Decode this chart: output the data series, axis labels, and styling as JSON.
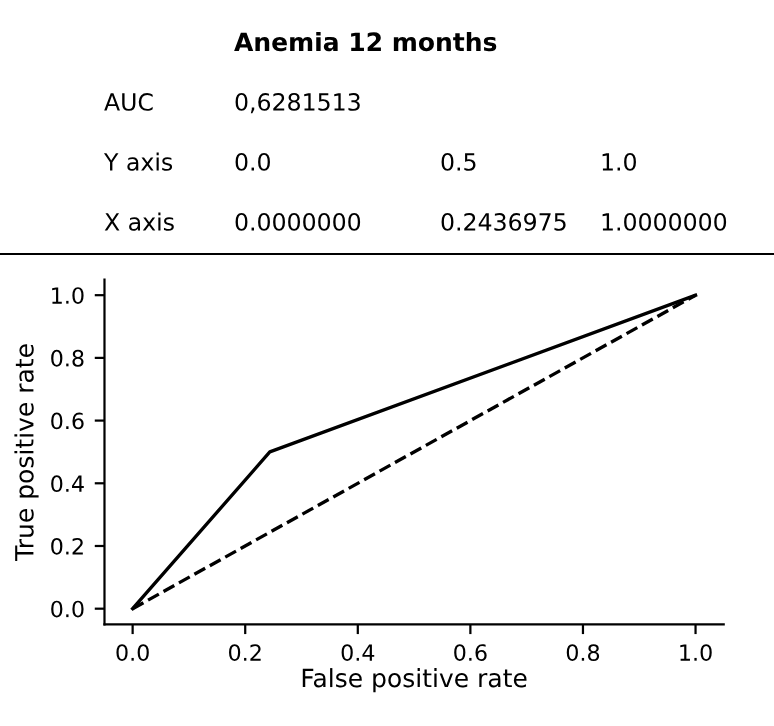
{
  "chart_data": {
    "type": "line",
    "title": "Anemia 12 months",
    "xlabel": "False positive rate",
    "ylabel": "True positive rate",
    "annotations": [
      "AUC",
      "0,6281513",
      "Y axis",
      "0.0",
      "0.5",
      "1.0",
      "X axis",
      "0.0000000",
      "0.2436975",
      "1.0000000"
    ],
    "series": [
      {
        "color": "#000000",
        "x": [
          0,
          0.2436975,
          1
        ],
        "values": [
          0,
          0.5,
          1
        ],
        "line_style": "solid"
      },
      {
        "color": "#000000",
        "x": [
          0,
          1
        ],
        "values": [
          0,
          1
        ],
        "line_style": "dashed"
      }
    ],
    "xlim": [
      -0.05,
      1.05
    ],
    "ylim": [
      -0.05,
      1.05
    ],
    "xticks": [
      {
        "value": 0,
        "label": "0.0"
      },
      {
        "value": 0.2,
        "label": "0.2"
      },
      {
        "value": 0.4,
        "label": "0.4"
      },
      {
        "value": 0.6,
        "label": "0.6"
      },
      {
        "value": 0.8,
        "label": "0.8"
      },
      {
        "value": 1,
        "label": "1.0"
      }
    ],
    "yticks": [
      {
        "value": 0,
        "label": "0.0"
      },
      {
        "value": 0.2,
        "label": "0.2"
      },
      {
        "value": 0.4,
        "label": "0.4"
      },
      {
        "value": 0.6,
        "label": "0.6"
      },
      {
        "value": 0.8,
        "label": "0.8"
      },
      {
        "value": 1,
        "label": "1.0"
      }
    ],
    "grid": false,
    "legend": false,
    "marker": "none"
  }
}
